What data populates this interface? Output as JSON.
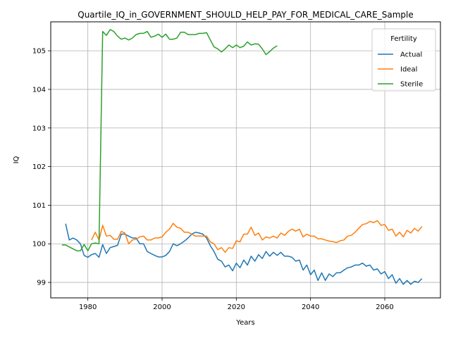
{
  "chart_data": {
    "type": "line",
    "title": "Quartile_IQ_in_GOVERNMENT_SHOULD_HELP_PAY_FOR_MEDICAL_CARE_Sample",
    "xlabel": "Years",
    "ylabel": "IQ",
    "xlim": [
      1970,
      2075
    ],
    "ylim": [
      98.6,
      105.75
    ],
    "x_ticks": [
      1980,
      2000,
      2020,
      2040,
      2060
    ],
    "y_ticks": [
      99,
      100,
      101,
      102,
      103,
      104,
      105
    ],
    "grid": true,
    "legend": {
      "title": "Fertility",
      "placement": "top-right"
    },
    "series": [
      {
        "name": "Actual",
        "color": "#1f77b4",
        "x": [
          1974,
          1975,
          1976,
          1977,
          1978,
          1979,
          1980,
          1981,
          1982,
          1983,
          1984,
          1985,
          1986,
          1987,
          1988,
          1989,
          1990,
          1991,
          1992,
          1993,
          1994,
          1995,
          1996,
          1997,
          1998,
          1999,
          2000,
          2001,
          2002,
          2003,
          2004,
          2005,
          2006,
          2007,
          2008,
          2009,
          2010,
          2011,
          2012,
          2013,
          2014,
          2015,
          2016,
          2017,
          2018,
          2019,
          2020,
          2021,
          2022,
          2023,
          2024,
          2025,
          2026,
          2027,
          2028,
          2029,
          2030,
          2031,
          2032,
          2033,
          2034,
          2035,
          2036,
          2037,
          2038,
          2039,
          2040,
          2041,
          2042,
          2043,
          2044,
          2045,
          2046,
          2047,
          2048,
          2049,
          2050,
          2051,
          2052,
          2053,
          2054,
          2055,
          2056,
          2057,
          2058,
          2059,
          2060,
          2061,
          2062,
          2063,
          2064,
          2065,
          2066,
          2067,
          2068,
          2069,
          2070
        ],
        "values": [
          100.52,
          100.1,
          100.15,
          100.1,
          100.0,
          99.7,
          99.65,
          99.72,
          99.75,
          99.65,
          99.98,
          99.75,
          99.9,
          99.93,
          99.96,
          100.25,
          100.25,
          100.2,
          100.15,
          100.15,
          100.0,
          100.0,
          99.8,
          99.75,
          99.7,
          99.66,
          99.66,
          99.7,
          99.8,
          100.0,
          99.95,
          100.0,
          100.07,
          100.15,
          100.25,
          100.3,
          100.28,
          100.25,
          100.15,
          99.95,
          99.8,
          99.6,
          99.55,
          99.4,
          99.45,
          99.3,
          99.5,
          99.38,
          99.58,
          99.45,
          99.68,
          99.55,
          99.72,
          99.62,
          99.8,
          99.68,
          99.78,
          99.7,
          99.78,
          99.68,
          99.68,
          99.65,
          99.55,
          99.58,
          99.32,
          99.45,
          99.2,
          99.32,
          99.05,
          99.25,
          99.05,
          99.22,
          99.15,
          99.25,
          99.25,
          99.32,
          99.38,
          99.4,
          99.45,
          99.45,
          99.5,
          99.42,
          99.45,
          99.32,
          99.35,
          99.22,
          99.28,
          99.1,
          99.2,
          98.98,
          99.1,
          98.95,
          99.05,
          98.95,
          99.03,
          99.0,
          99.1
        ]
      },
      {
        "name": "Ideal",
        "color": "#ff7f0e",
        "x": [
          1981,
          1982,
          1983,
          1984,
          1985,
          1986,
          1987,
          1988,
          1989,
          1990,
          1991,
          1992,
          1993,
          1994,
          1995,
          1996,
          1997,
          1998,
          1999,
          2000,
          2001,
          2002,
          2003,
          2004,
          2005,
          2006,
          2007,
          2008,
          2009,
          2010,
          2011,
          2012,
          2013,
          2014,
          2015,
          2016,
          2017,
          2018,
          2019,
          2020,
          2021,
          2022,
          2023,
          2024,
          2025,
          2026,
          2027,
          2028,
          2029,
          2030,
          2031,
          2032,
          2033,
          2034,
          2035,
          2036,
          2037,
          2038,
          2039,
          2040,
          2041,
          2042,
          2043,
          2044,
          2045,
          2046,
          2047,
          2048,
          2049,
          2050,
          2051,
          2052,
          2053,
          2054,
          2055,
          2056,
          2057,
          2058,
          2059,
          2060,
          2061,
          2062,
          2063,
          2064,
          2065,
          2066,
          2067,
          2068,
          2069,
          2070
        ],
        "values": [
          100.1,
          100.3,
          100.1,
          100.48,
          100.2,
          100.22,
          100.12,
          100.12,
          100.32,
          100.28,
          100.0,
          100.1,
          100.12,
          100.18,
          100.2,
          100.1,
          100.1,
          100.15,
          100.15,
          100.18,
          100.3,
          100.38,
          100.53,
          100.43,
          100.4,
          100.3,
          100.3,
          100.25,
          100.2,
          100.2,
          100.2,
          100.2,
          100.05,
          100.0,
          99.85,
          99.9,
          99.78,
          99.9,
          99.88,
          100.08,
          100.05,
          100.25,
          100.25,
          100.43,
          100.22,
          100.28,
          100.1,
          100.18,
          100.15,
          100.2,
          100.15,
          100.28,
          100.22,
          100.32,
          100.38,
          100.33,
          100.38,
          100.18,
          100.25,
          100.2,
          100.2,
          100.13,
          100.13,
          100.1,
          100.07,
          100.06,
          100.03,
          100.08,
          100.1,
          100.2,
          100.22,
          100.3,
          100.4,
          100.5,
          100.52,
          100.58,
          100.55,
          100.6,
          100.48,
          100.5,
          100.35,
          100.38,
          100.2,
          100.3,
          100.18,
          100.35,
          100.28,
          100.4,
          100.33,
          100.45
        ]
      },
      {
        "name": "Sterile",
        "color": "#2ca02c",
        "x": [
          1973,
          1974,
          1975,
          1976,
          1977,
          1978,
          1979,
          1980,
          1981,
          1982,
          1983,
          1984,
          1985,
          1986,
          1987,
          1988,
          1989,
          1990,
          1991,
          1992,
          1993,
          1994,
          1995,
          1996,
          1997,
          1998,
          1999,
          2000,
          2001,
          2002,
          2003,
          2004,
          2005,
          2006,
          2007,
          2008,
          2009,
          2010,
          2011,
          2012,
          2013,
          2014,
          2015,
          2016,
          2017,
          2018,
          2019,
          2020,
          2021,
          2022,
          2023,
          2024,
          2025,
          2026,
          2027,
          2028,
          2029,
          2030,
          2031
        ],
        "values": [
          99.97,
          99.97,
          99.92,
          99.87,
          99.82,
          99.82,
          99.98,
          99.82,
          100.0,
          100.02,
          100.0,
          105.5,
          105.4,
          105.55,
          105.5,
          105.38,
          105.3,
          105.33,
          105.28,
          105.33,
          105.42,
          105.45,
          105.45,
          105.5,
          105.35,
          105.38,
          105.43,
          105.35,
          105.43,
          105.3,
          105.3,
          105.33,
          105.48,
          105.48,
          105.42,
          105.42,
          105.42,
          105.45,
          105.45,
          105.47,
          105.28,
          105.1,
          105.05,
          104.97,
          105.05,
          105.15,
          105.08,
          105.15,
          105.08,
          105.12,
          105.23,
          105.15,
          105.18,
          105.17,
          105.05,
          104.9,
          104.98,
          105.07,
          105.13
        ]
      }
    ]
  }
}
